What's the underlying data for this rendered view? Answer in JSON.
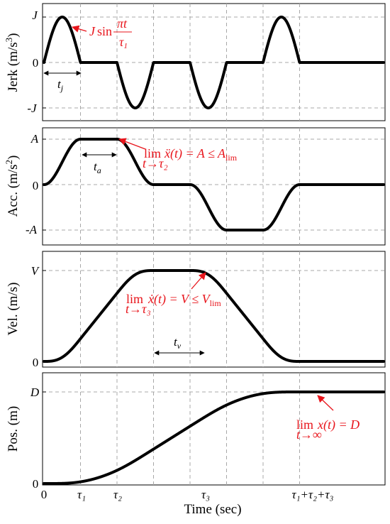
{
  "chart_data": [
    {
      "id": "jerk",
      "type": "line",
      "ylabel": "Jerk (m/s³)",
      "yticks": [
        "J",
        "0",
        "-J"
      ],
      "ylim": [
        -1.2,
        1.2
      ],
      "x_ticks_segments": [
        0,
        1,
        2,
        3,
        4,
        5,
        6,
        7
      ],
      "series": [
        {
          "values_description_free": true,
          "points": [
            [
              0,
              0
            ],
            [
              0.5,
              1
            ],
            [
              1,
              0
            ],
            [
              2,
              0
            ],
            [
              2.5,
              -1
            ],
            [
              3,
              0
            ],
            [
              4,
              0
            ],
            [
              4.5,
              -1
            ],
            [
              5,
              0
            ],
            [
              6,
              0
            ],
            [
              6.5,
              1
            ],
            [
              7,
              0
            ],
            [
              9,
              0
            ]
          ]
        }
      ],
      "annotation": {
        "main": "J sin",
        "frac_num": "πt",
        "frac_den": "τ",
        "frac_den_sub": "1"
      },
      "interval_label": {
        "base": "t",
        "sub": "j"
      }
    },
    {
      "id": "acc",
      "type": "line",
      "ylabel": "Acc. (m/s²)",
      "yticks": [
        "A",
        "0",
        "-A"
      ],
      "ylim": [
        -1.2,
        1.2
      ],
      "annotation": {
        "lim": "lim",
        "sub": "t→τ₂",
        "expr": "ẍ(t) = A ≤ A",
        "expr_sub": "lim"
      },
      "interval_label": {
        "base": "t",
        "sub": "a"
      }
    },
    {
      "id": "vel",
      "type": "line",
      "ylabel": "Vel. (m/s)",
      "yticks": [
        "V",
        "0"
      ],
      "ylim": [
        0,
        1.1
      ],
      "annotation": {
        "lim": "lim",
        "sub": "t→τ₃",
        "expr": "ẋ(t) = V ≤ V",
        "expr_sub": "lim"
      },
      "interval_label": {
        "base": "t",
        "sub": "v"
      }
    },
    {
      "id": "pos",
      "type": "line",
      "ylabel": "Pos. (m)",
      "yticks": [
        "D",
        "0"
      ],
      "ylim": [
        0,
        1.15
      ],
      "annotation": {
        "lim": "lim",
        "sub": "t→∞",
        "expr": "x(t) = D"
      }
    }
  ],
  "x_axis": {
    "label": "Time (sec)",
    "ticks": [
      "0",
      "τ₁",
      "τ₂",
      "τ₃",
      "τ₁+τ₂+τ₃"
    ]
  },
  "colors": {
    "annotation": "#e8141b",
    "curve": "#000000",
    "grid": "#a8a8a8"
  }
}
